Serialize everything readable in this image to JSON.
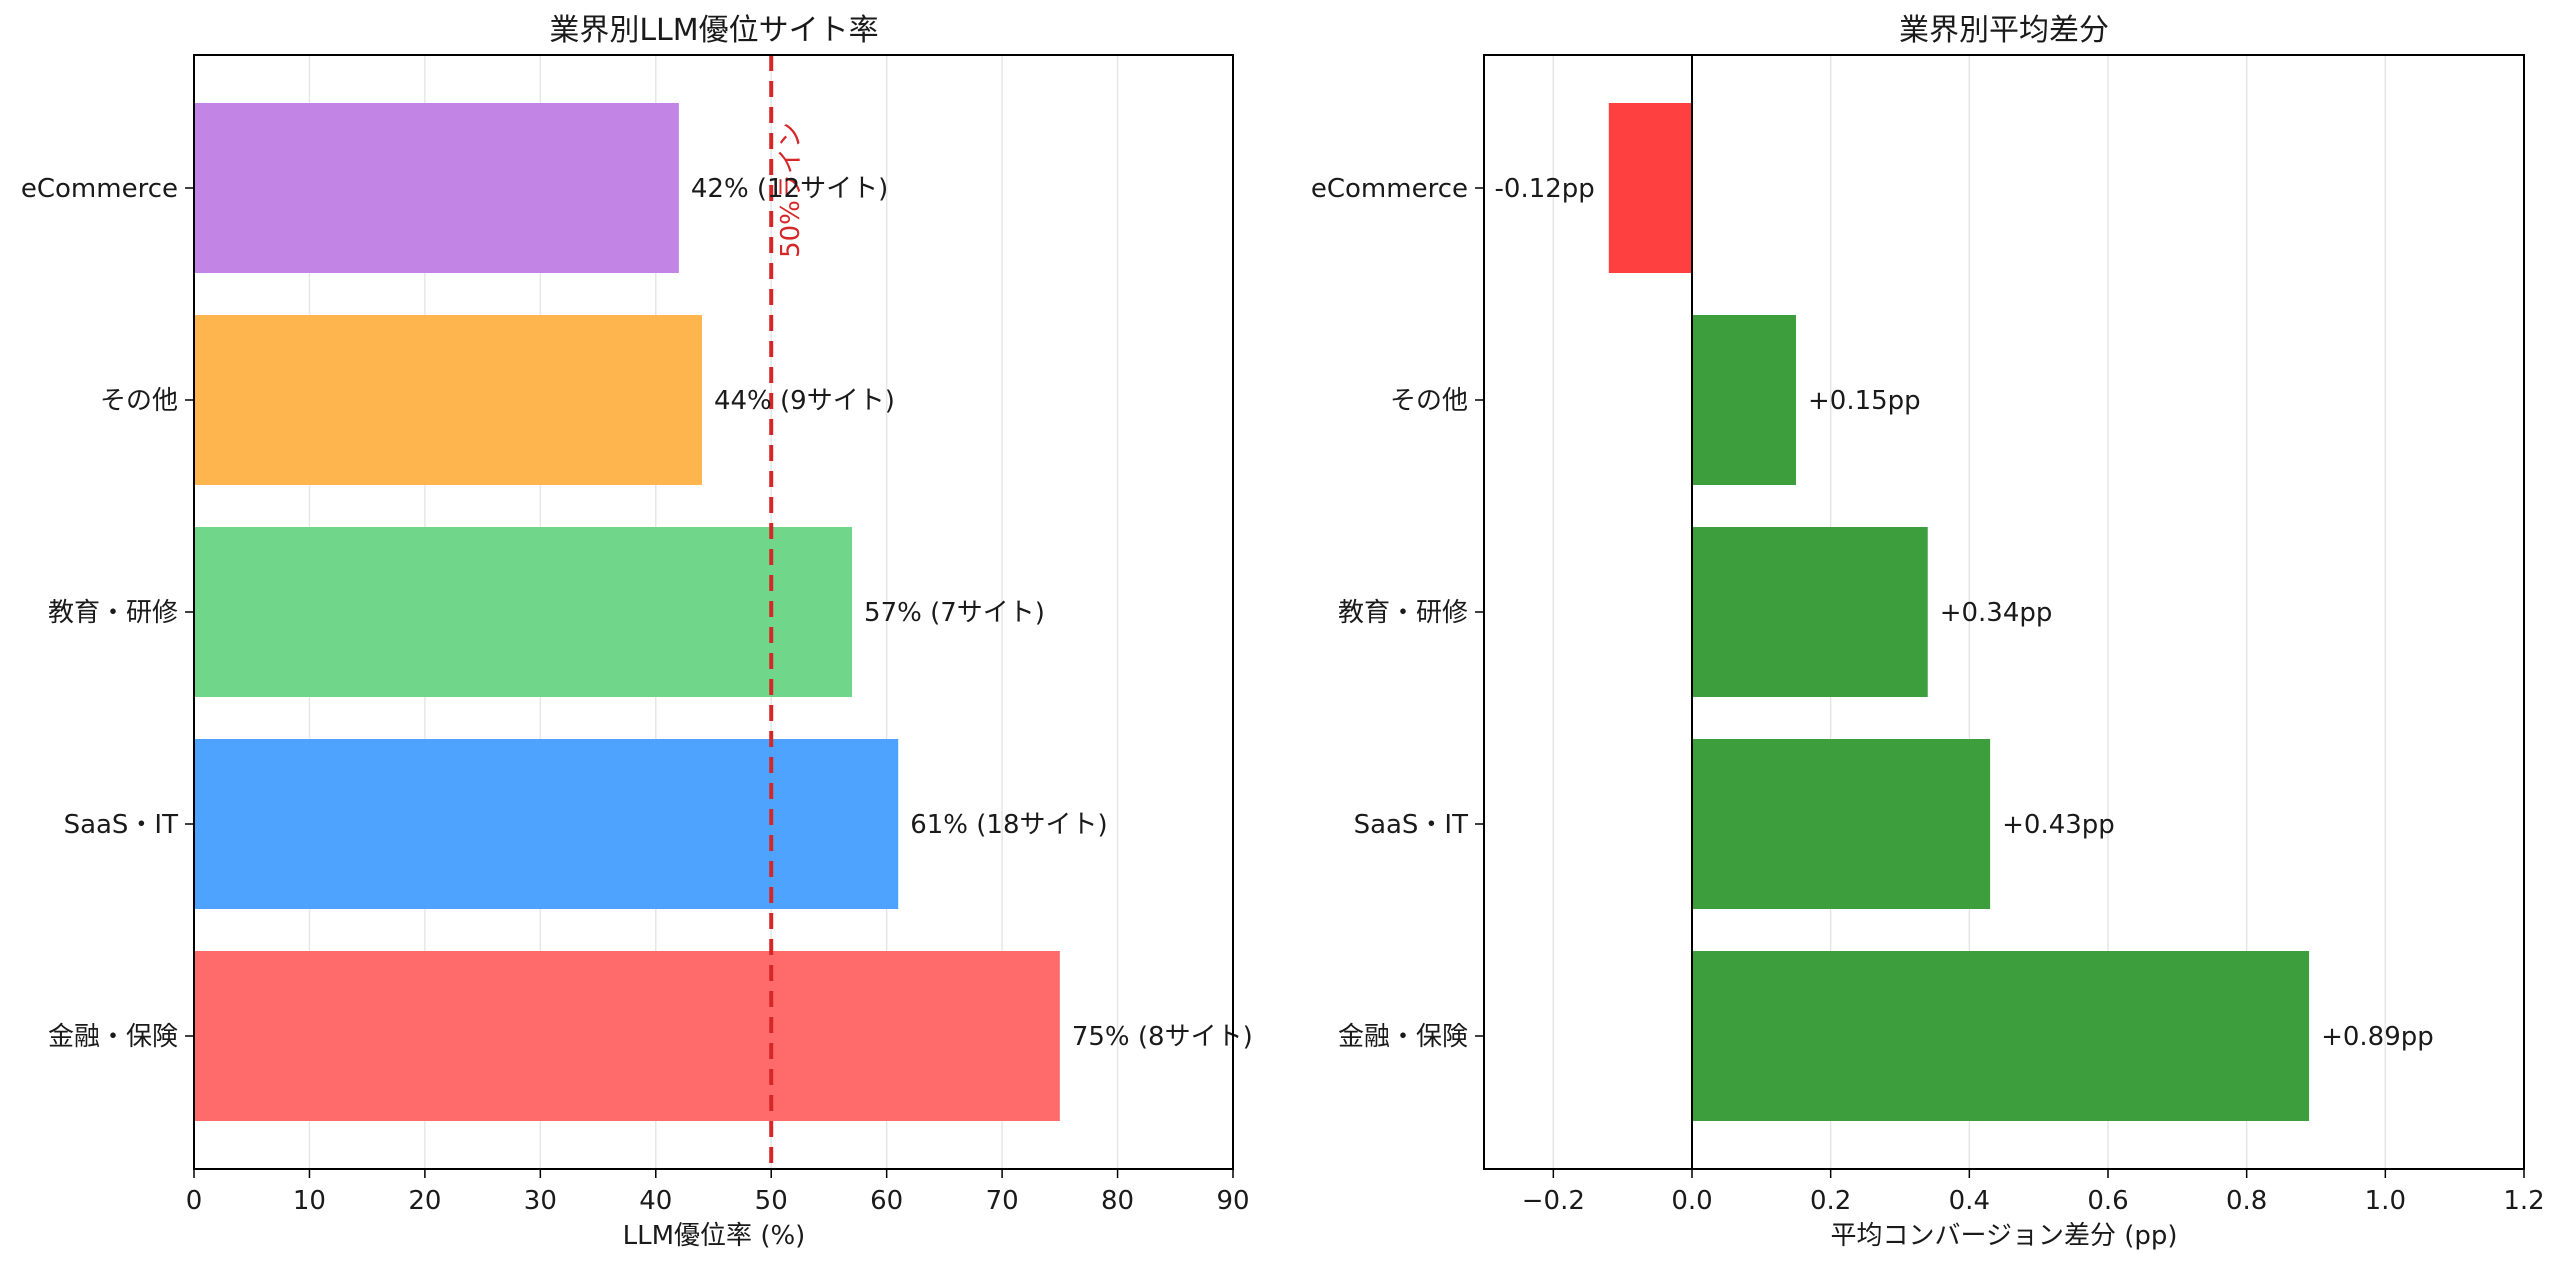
{
  "chart_data": [
    {
      "type": "bar",
      "orientation": "horizontal",
      "title": "業界別LLM優位サイト率",
      "xlabel": "LLM優位率 (%)",
      "ylabel": "",
      "categories": [
        "金融・保険",
        "SaaS・IT",
        "教育・研修",
        "その他",
        "eCommerce"
      ],
      "values": [
        75,
        61,
        57,
        44,
        42
      ],
      "colors": [
        "#ff6b6b",
        "#4da3ff",
        "#6fd68a",
        "#ffb54d",
        "#c285e6"
      ],
      "data_labels": [
        "75% (8サイト)",
        "61% (18サイト)",
        "57% (7サイト)",
        "44% (9サイト)",
        "42% (12サイト)"
      ],
      "xlim": [
        0,
        90
      ],
      "xticks": [
        0,
        10,
        20,
        30,
        40,
        50,
        60,
        70,
        80,
        90
      ],
      "xtick_labels": [
        "0",
        "10",
        "20",
        "30",
        "40",
        "50",
        "60",
        "70",
        "80",
        "90"
      ],
      "grid": "x",
      "reference_line": {
        "value": 50,
        "label": "50%ライン",
        "color": "#d62728",
        "style": "dashed"
      }
    },
    {
      "type": "bar",
      "orientation": "horizontal",
      "title": "業界別平均差分",
      "xlabel": "平均コンバージョン差分 (pp)",
      "ylabel": "",
      "categories": [
        "金融・保険",
        "SaaS・IT",
        "教育・研修",
        "その他",
        "eCommerce"
      ],
      "values": [
        0.89,
        0.43,
        0.34,
        0.15,
        -0.12
      ],
      "colors": [
        "#3d9e3d",
        "#3d9e3d",
        "#3d9e3d",
        "#3d9e3d",
        "#ff4040"
      ],
      "data_labels": [
        "+0.89pp",
        "+0.43pp",
        "+0.34pp",
        "+0.15pp",
        "-0.12pp"
      ],
      "xlim": [
        -0.3,
        1.2
      ],
      "xticks": [
        -0.2,
        0.0,
        0.2,
        0.4,
        0.6,
        0.8,
        1.0,
        1.2
      ],
      "xtick_labels": [
        "−0.2",
        "0.0",
        "0.2",
        "0.4",
        "0.6",
        "0.8",
        "1.0",
        "1.2"
      ],
      "grid": "x",
      "zero_line": true
    }
  ]
}
